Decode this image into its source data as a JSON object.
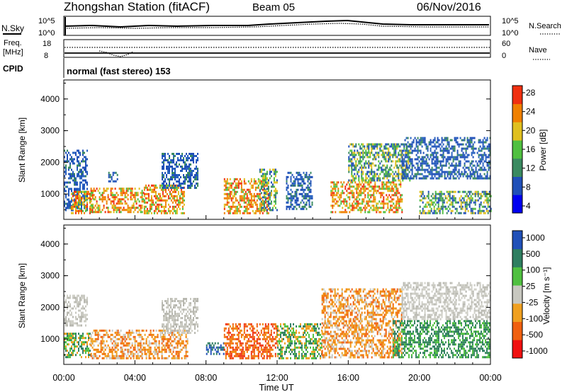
{
  "header": {
    "station": "Zhongshan Station (fitACF)",
    "beam": "Beam 05",
    "date": "06/Nov/2016"
  },
  "noise_panel": {
    "left_label": "N.Sky",
    "left_ticks": [
      "10^5",
      "10^0"
    ],
    "right_ticks": [
      "10^5",
      "10^0"
    ],
    "right_label": "N.Search"
  },
  "freq_panel": {
    "left_label": "Freq.",
    "left_unit": "[MHz]",
    "left_ticks": [
      "18",
      "8"
    ],
    "right_ticks": [
      "60",
      "0"
    ],
    "right_label": "Nave"
  },
  "cpid": {
    "label": "CPID",
    "text": "normal (fast stereo) 153"
  },
  "x_axis": {
    "title": "Time UT",
    "ticks": [
      "00:00",
      "04:00",
      "08:00",
      "12:00",
      "16:00",
      "20:00",
      "00:00"
    ]
  },
  "chart_data": [
    {
      "type": "heatmap",
      "title": "",
      "ylabel": "Slant Range [km]",
      "xlabel": "Time UT",
      "xlim": [
        0,
        24
      ],
      "ylim": [
        200,
        4600
      ],
      "yticks": [
        "4000",
        "3000",
        "2000",
        "1000"
      ],
      "colorbar": {
        "label": "Power [dB]",
        "ticks": [
          "28",
          "24",
          "20",
          "16",
          "12",
          "8",
          "4"
        ],
        "range": [
          0,
          30
        ],
        "colors": [
          "#0000f0",
          "#2050b8",
          "#3a8a60",
          "#50c040",
          "#e0c020",
          "#f08000",
          "#f03010"
        ]
      },
      "echo_bands": [
        {
          "t": [
            0.0,
            1.3
          ],
          "r": [
            500,
            2400
          ],
          "level": "low"
        },
        {
          "t": [
            0.4,
            1.6
          ],
          "r": [
            400,
            1100
          ],
          "level": "high"
        },
        {
          "t": [
            1.5,
            4.5
          ],
          "r": [
            400,
            1200
          ],
          "level": "high"
        },
        {
          "t": [
            2.5,
            3.0
          ],
          "r": [
            1400,
            1700
          ],
          "level": "low"
        },
        {
          "t": [
            4.5,
            6.8
          ],
          "r": [
            400,
            1300
          ],
          "level": "high"
        },
        {
          "t": [
            5.5,
            7.5
          ],
          "r": [
            1200,
            2300
          ],
          "level": "low"
        },
        {
          "t": [
            9.0,
            11.5
          ],
          "r": [
            400,
            1500
          ],
          "level": "high"
        },
        {
          "t": [
            11.0,
            12.0
          ],
          "r": [
            500,
            1800
          ],
          "level": "mid"
        },
        {
          "t": [
            12.5,
            14.0
          ],
          "r": [
            500,
            1700
          ],
          "level": "low"
        },
        {
          "t": [
            15.0,
            19.0
          ],
          "r": [
            400,
            1400
          ],
          "level": "high"
        },
        {
          "t": [
            16.0,
            19.5
          ],
          "r": [
            1400,
            2600
          ],
          "level": "mid"
        },
        {
          "t": [
            19.0,
            24.0
          ],
          "r": [
            1500,
            2800
          ],
          "level": "low"
        },
        {
          "t": [
            20.0,
            24.0
          ],
          "r": [
            400,
            1100
          ],
          "level": "mid"
        }
      ]
    },
    {
      "type": "heatmap",
      "title": "",
      "ylabel": "Slant Range [km]",
      "xlabel": "Time UT",
      "xlim": [
        0,
        24
      ],
      "ylim": [
        200,
        4600
      ],
      "yticks": [
        "4000",
        "3000",
        "2000",
        "1000"
      ],
      "colorbar": {
        "label": "Velocity [m s⁻¹]",
        "ticks": [
          "1000",
          "500",
          "100",
          "25",
          "-25",
          "-100",
          "-500",
          "-1000"
        ],
        "range": [
          -1000,
          1000
        ],
        "colors": [
          "#f01010",
          "#f06010",
          "#f0a020",
          "#c8c8c0",
          "#50c040",
          "#2e7e60",
          "#2050b8"
        ]
      },
      "echo_bands": [
        {
          "t": [
            0.0,
            1.3
          ],
          "r": [
            1400,
            2400
          ],
          "level": "gray"
        },
        {
          "t": [
            0.0,
            1.5
          ],
          "r": [
            400,
            1200
          ],
          "level": "green"
        },
        {
          "t": [
            1.5,
            7.0
          ],
          "r": [
            400,
            1300
          ],
          "level": "orange"
        },
        {
          "t": [
            5.5,
            7.5
          ],
          "r": [
            1200,
            2300
          ],
          "level": "gray"
        },
        {
          "t": [
            8.0,
            9.0
          ],
          "r": [
            500,
            900
          ],
          "level": "blue"
        },
        {
          "t": [
            9.0,
            12.0
          ],
          "r": [
            400,
            1500
          ],
          "level": "red"
        },
        {
          "t": [
            12.0,
            14.5
          ],
          "r": [
            400,
            1500
          ],
          "level": "green"
        },
        {
          "t": [
            14.5,
            19.0
          ],
          "r": [
            400,
            2600
          ],
          "level": "orange"
        },
        {
          "t": [
            18.5,
            24.0
          ],
          "r": [
            400,
            1600
          ],
          "level": "teal"
        },
        {
          "t": [
            19.0,
            24.0
          ],
          "r": [
            1600,
            2800
          ],
          "level": "gray"
        }
      ]
    }
  ]
}
